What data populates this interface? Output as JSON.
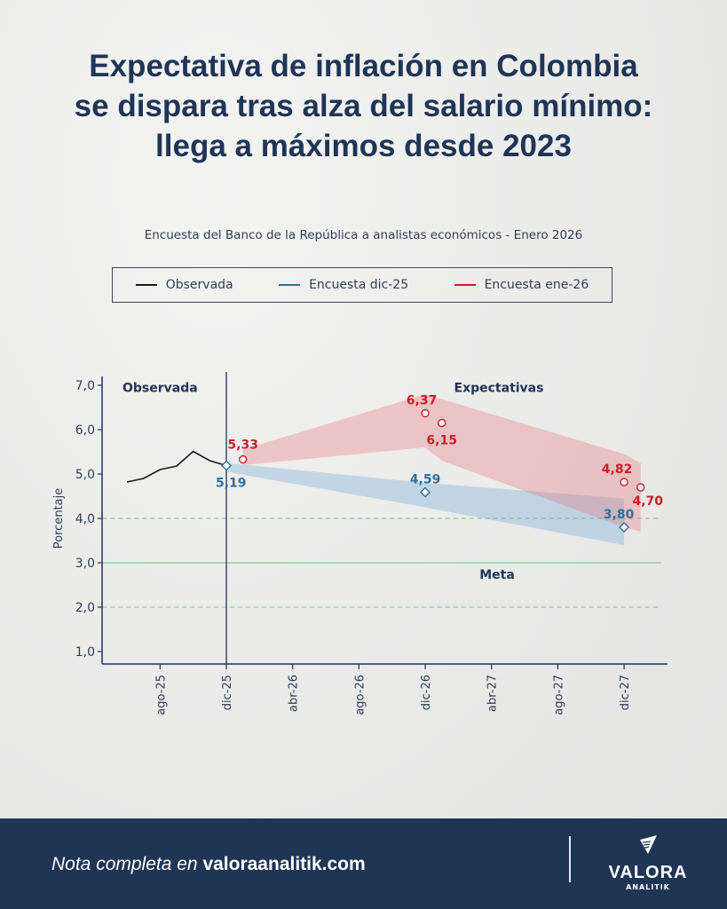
{
  "title_lines": [
    "Expectativa de inflación en Colombia",
    "se dispara tras alza del salario mínimo:",
    "llega a máximos desde 2023"
  ],
  "subtitle": "Encuesta del Banco de la República a analistas económicos - Enero 2026",
  "footer": {
    "note_prefix": "Nota completa en ",
    "note_link": "valoraanalitik.com",
    "brand": "VALORA",
    "brand_sub": "ANALITIK"
  },
  "colors": {
    "observed": "#1a1a1a",
    "dic25": "#2f6f9f",
    "ene26": "#c8202a",
    "meta": "#7fd08a",
    "navy": "#1f3556"
  },
  "chart_data": {
    "type": "line",
    "ylabel": "Porcentaje",
    "ylim": [
      0.7,
      7.2
    ],
    "yticks": [
      "1,0",
      "2,0",
      "3,0",
      "4,0",
      "5,0",
      "6,0",
      "7,0"
    ],
    "ytick_values": [
      1,
      2,
      3,
      4,
      5,
      6,
      7
    ],
    "xticks": [
      {
        "label": "ago-25",
        "date": "2025-08"
      },
      {
        "label": "dic-25",
        "date": "2025-12"
      },
      {
        "label": "abr-26",
        "date": "2026-04"
      },
      {
        "label": "ago-26",
        "date": "2026-08"
      },
      {
        "label": "dic-26",
        "date": "2026-12"
      },
      {
        "label": "abr-27",
        "date": "2027-04"
      },
      {
        "label": "ago-27",
        "date": "2027-08"
      },
      {
        "label": "dic-27",
        "date": "2027-12"
      }
    ],
    "annotations": {
      "observed": "Observada",
      "expectations": "Expectativas",
      "target": "Meta"
    },
    "target": 3.0,
    "target_range": [
      2.0,
      4.0
    ],
    "legend": [
      {
        "name": "Observada",
        "color": "#1a1a1a"
      },
      {
        "name": "Encuesta dic-25",
        "color": "#2f6f9f"
      },
      {
        "name": "Encuesta ene-26",
        "color": "#c8202a"
      }
    ],
    "series": [
      {
        "name": "Observada",
        "points": [
          [
            "2025-06",
            4.82
          ],
          [
            "2025-07",
            4.9
          ],
          [
            "2025-08",
            5.1
          ],
          [
            "2025-09",
            5.18
          ],
          [
            "2025-10",
            5.51
          ],
          [
            "2025-11",
            5.3
          ],
          [
            "2025-12",
            5.19
          ]
        ]
      },
      {
        "name": "Encuesta dic-25",
        "points": [
          [
            "2025-12",
            5.19,
            "5,19"
          ],
          [
            "2026-12",
            4.59,
            "4,59"
          ],
          [
            "2027-12",
            3.8,
            "3,80"
          ]
        ],
        "band_upper": [
          [
            "2025-12",
            5.25
          ],
          [
            "2026-12",
            4.8
          ],
          [
            "2027-12",
            4.45
          ]
        ],
        "band_lower": [
          [
            "2025-12",
            5.05
          ],
          [
            "2026-12",
            4.25
          ],
          [
            "2027-12",
            3.4
          ]
        ]
      },
      {
        "name": "Encuesta ene-26",
        "points": [
          [
            "2026-01",
            5.33,
            "5,33"
          ],
          [
            "2026-12",
            6.37,
            "6,37"
          ],
          [
            "2027-01",
            6.15,
            "6,15"
          ],
          [
            "2027-12",
            4.82,
            "4,82"
          ],
          [
            "2028-01",
            4.7,
            "4,70"
          ]
        ],
        "band_upper": [
          [
            "2026-01",
            5.55
          ],
          [
            "2026-12",
            6.8
          ],
          [
            "2027-12",
            5.45
          ],
          [
            "2028-01",
            5.25
          ]
        ],
        "band_lower": [
          [
            "2026-01",
            5.2
          ],
          [
            "2026-12",
            5.6
          ],
          [
            "2027-01",
            5.3
          ],
          [
            "2027-12",
            3.8
          ],
          [
            "2028-01",
            3.7
          ]
        ]
      }
    ]
  }
}
